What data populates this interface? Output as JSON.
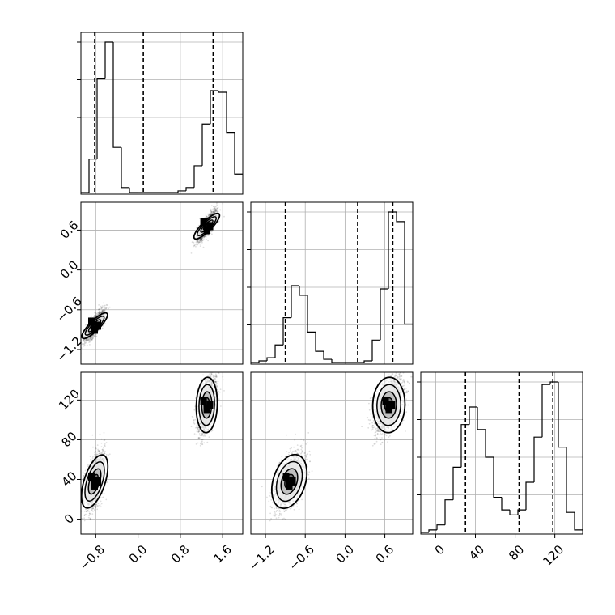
{
  "chart_data": {
    "type": "corner",
    "grid": true,
    "ticks": {
      "p0": [
        "-0.8",
        "0.0",
        "0.8",
        "1.6"
      ],
      "p1": [
        "-1.2",
        "-0.6",
        "0.0",
        "0.6"
      ],
      "p2": [
        "0",
        "40",
        "80",
        "120"
      ]
    },
    "ranges": {
      "p0": [
        -1.08,
        1.98
      ],
      "p1": [
        -1.42,
        1.02
      ],
      "p2": [
        -15,
        148
      ]
    },
    "quantiles": {
      "p0": [
        -0.82,
        0.1,
        1.42
      ],
      "p1": [
        -0.9,
        0.19,
        0.72
      ],
      "p2": [
        30,
        84,
        118
      ]
    },
    "histograms": {
      "p0": {
        "bin_edges": [
          -1.08,
          -0.927,
          -0.774,
          -0.621,
          -0.468,
          -0.315,
          -0.162,
          -0.009,
          0.144,
          0.297,
          0.45,
          0.603,
          0.756,
          0.909,
          1.062,
          1.215,
          1.368,
          1.521,
          1.674,
          1.827,
          1.98
        ],
        "counts": [
          0,
          20,
          68,
          90,
          27,
          3,
          0,
          0,
          0,
          0,
          0,
          0,
          1,
          3,
          16,
          41,
          61,
          60,
          36,
          11
        ]
      },
      "p1": {
        "bin_edges": [
          -1.42,
          -1.298,
          -1.176,
          -1.054,
          -0.932,
          -0.81,
          -0.688,
          -0.566,
          -0.444,
          -0.322,
          -0.2,
          -0.078,
          0.044,
          0.166,
          0.288,
          0.41,
          0.532,
          0.654,
          0.776,
          0.898,
          1.02
        ],
        "counts": [
          0,
          1,
          3,
          11,
          28,
          48,
          42,
          19,
          7,
          2,
          0,
          0,
          0,
          0,
          1,
          14,
          46,
          94,
          88,
          24
        ]
      },
      "p2": {
        "bin_edges": [
          -15,
          -6.85,
          1.3,
          9.45,
          17.6,
          25.75,
          33.9,
          42.05,
          50.2,
          58.35,
          66.5,
          74.65,
          82.8,
          90.95,
          99.1,
          107.25,
          115.4,
          123.55,
          131.7,
          139.85,
          148
        ],
        "counts": [
          0,
          1,
          3,
          13,
          26,
          43,
          50,
          41,
          30,
          14,
          9,
          7,
          9,
          20,
          38,
          59,
          60,
          34,
          8,
          1
        ]
      }
    },
    "modes": [
      {
        "p0": -0.82,
        "p1": -0.84,
        "p2": 38
      },
      {
        "p0": 1.3,
        "p1": 0.66,
        "p2": 115
      }
    ]
  }
}
